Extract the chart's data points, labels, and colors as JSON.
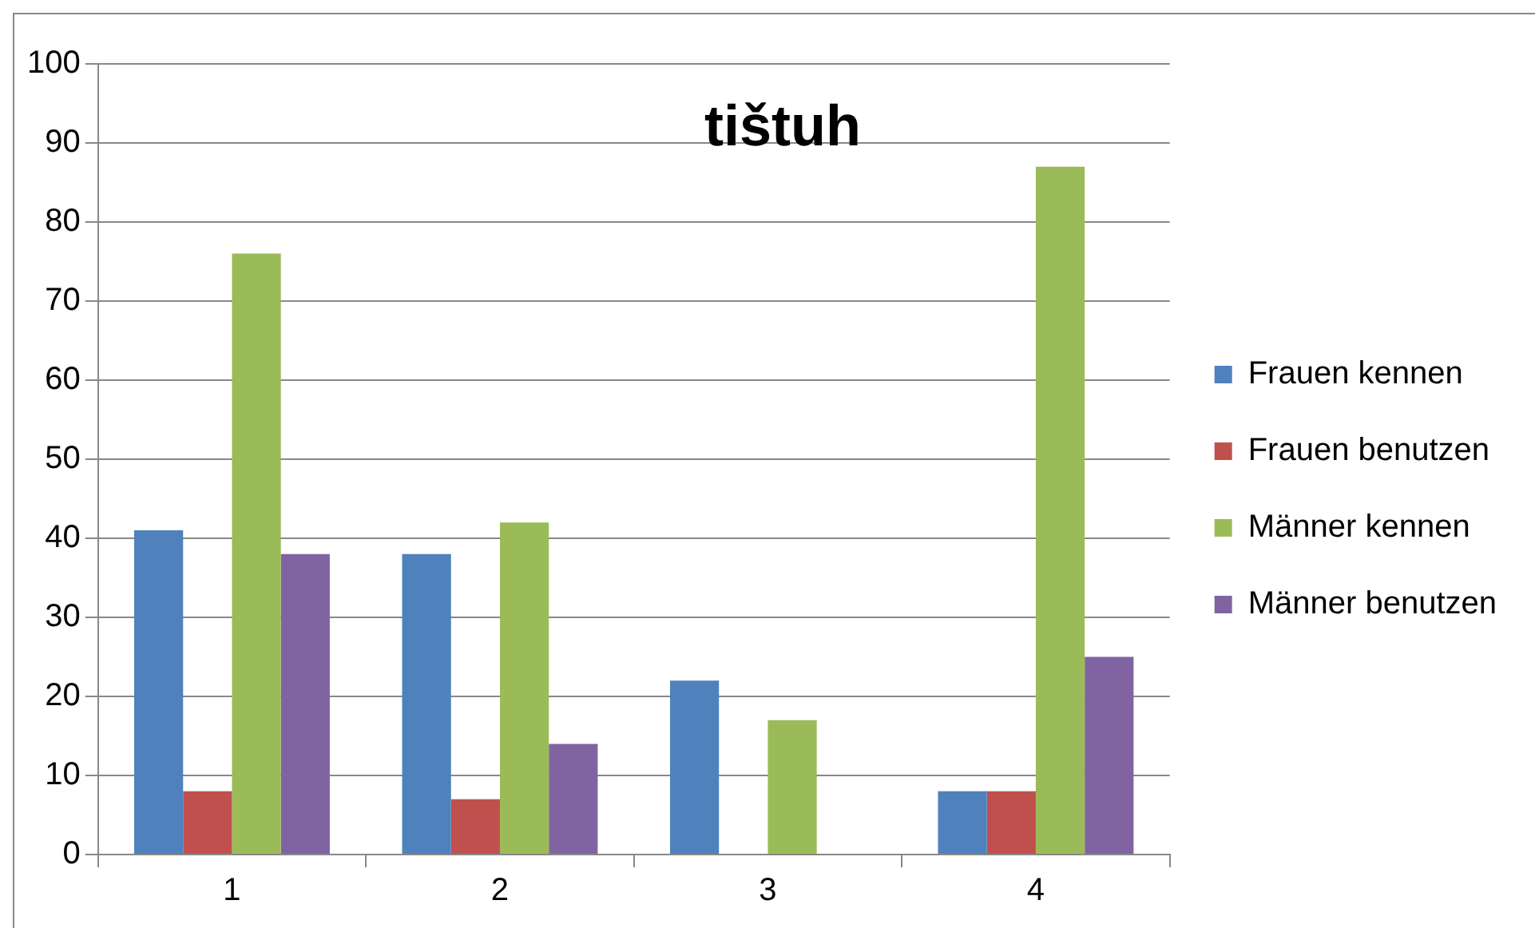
{
  "chart_data": {
    "type": "bar",
    "title": "tištuh",
    "categories": [
      "1",
      "2",
      "3",
      "4"
    ],
    "series": [
      {
        "name": "Frauen kennen",
        "color": "#4f81bd",
        "values": [
          41,
          38,
          22,
          8
        ]
      },
      {
        "name": "Frauen benutzen",
        "color": "#c0504d",
        "values": [
          8,
          7,
          0,
          8
        ]
      },
      {
        "name": "Männer kennen",
        "color": "#9bbb59",
        "values": [
          76,
          42,
          17,
          87
        ]
      },
      {
        "name": "Männer benutzen",
        "color": "#8064a2",
        "values": [
          38,
          14,
          0,
          25
        ]
      }
    ],
    "ylim": [
      0,
      100
    ],
    "yticks": [
      0,
      10,
      20,
      30,
      40,
      50,
      60,
      70,
      80,
      90,
      100
    ],
    "grid": "y",
    "legend": "right"
  }
}
